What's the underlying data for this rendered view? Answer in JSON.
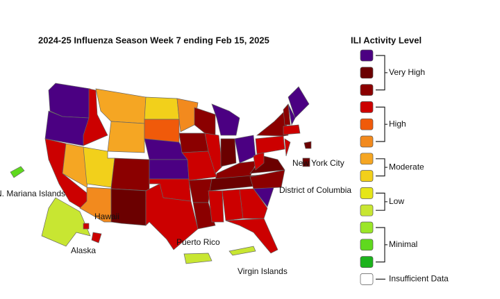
{
  "title": "2024-25 Influenza Season Week 7 ending Feb 15, 2025",
  "legend": {
    "title": "ILI Activity Level",
    "colors": [
      "#4b0082",
      "#6b0000",
      "#8b0000",
      "#cc0000",
      "#f05a0a",
      "#f28a1e",
      "#f5a623",
      "#f2d01b",
      "#e6e619",
      "#c8e632",
      "#9be628",
      "#5fd91e",
      "#1cb31c",
      "#ffffff"
    ],
    "groups": [
      {
        "label": "Very High"
      },
      {
        "label": "High"
      },
      {
        "label": "Moderate"
      },
      {
        "label": "Low"
      },
      {
        "label": "Minimal"
      },
      {
        "label": "Insufficient Data"
      }
    ]
  },
  "labels": {
    "mariana": "N. Mariana Islands",
    "hawaii": "Hawaii",
    "alaska": "Alaska",
    "puerto_rico": "Puerto Rico",
    "virgin_islands": "Virgin Islands",
    "nyc": "New York City",
    "dc": "District of Columbia"
  },
  "state_colors": [
    "#4b0082",
    "#4b0082",
    "#cc0000",
    "#f5a623",
    "#cc0000",
    "#f5a623",
    "#f5a623",
    "#f2d01b",
    "#f28a1e",
    "#8b0000",
    "#6b0000",
    "#f2d01b",
    "#f05a0a",
    "#4b0082",
    "#4b0082",
    "#cc0000",
    "#cc0000",
    "#f28a1e",
    "#8b0000",
    "#cc0000",
    "#8b0000",
    "#8b0000",
    "#8b0000",
    "#cc0000",
    "#4b0082",
    "#6b0000",
    "#4b0082",
    "#8b0000",
    "#6b0000",
    "#cc0000",
    "#cc0000",
    "#cc0000",
    "#cc0000",
    "#4b0082",
    "#8b0000",
    "#6b0000",
    "#cc0000",
    "#cc0000",
    "#8b0000",
    "#cc0000",
    "#4b0082",
    "#4b0082",
    "#8b0000",
    "#cc0000",
    "#c8e632",
    "#cc0000",
    "#cc0000",
    "#c8e632",
    "#c8e632",
    "#5fd91e",
    "#6b0000",
    "#6b0000"
  ]
}
